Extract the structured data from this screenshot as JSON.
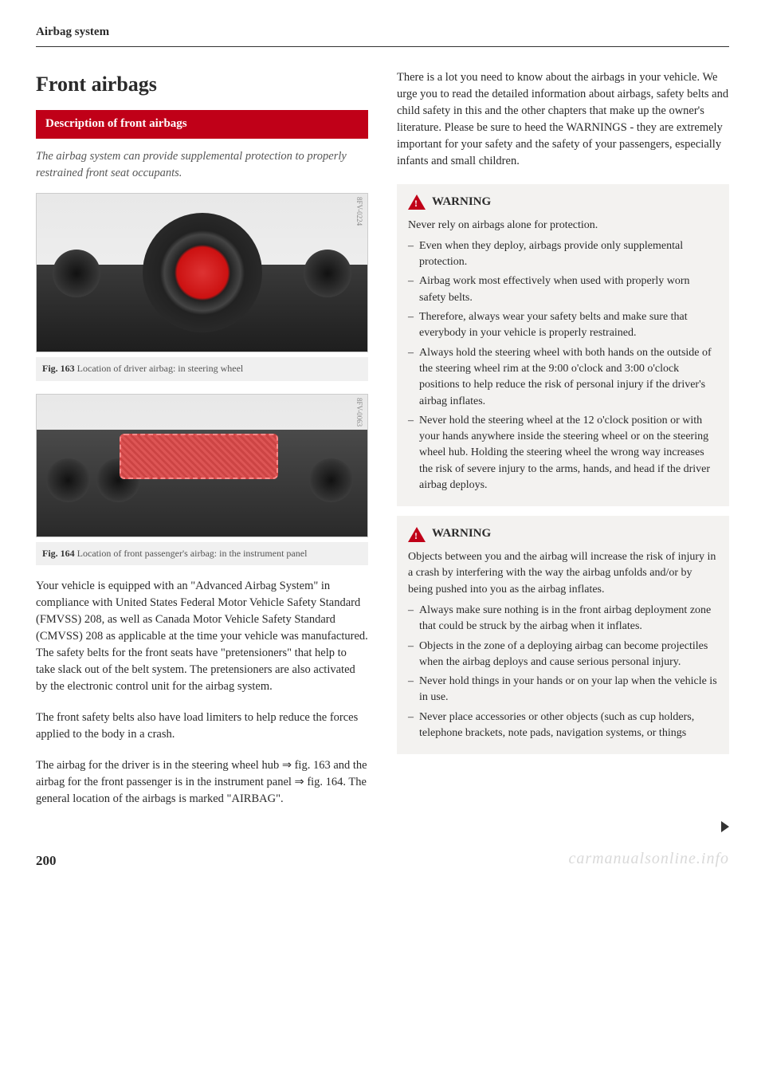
{
  "running_header": "Airbag system",
  "section_title": "Front airbags",
  "subsection_bar": "Description of front airbags",
  "lead": "The airbag system can provide supplemental protection to properly restrained front seat occupants.",
  "fig1": {
    "code": "8FV-0224",
    "caption_bold": "Fig. 163",
    "caption_text": "Location of driver airbag: in steering wheel"
  },
  "fig2": {
    "code": "8FV-0063",
    "caption_bold": "Fig. 164",
    "caption_text": "Location of front passenger's airbag: in the instrument panel"
  },
  "para1": "Your vehicle is equipped with an \"Advanced Airbag System\" in compliance with United States Federal Motor Vehicle Safety Standard (FMVSS) 208, as well as Canada Motor Vehicle Safety Standard (CMVSS) 208 as applicable at the time your vehicle was manufactured. The safety belts for the front seats have \"pretensioners\" that help to take slack out of the belt system. The pretensioners are also activated by the electronic control unit for the airbag system.",
  "para2": "The front safety belts also have load limiters to help reduce the forces applied to the body in a crash.",
  "para3": "The airbag for the driver is in the steering wheel hub ⇒ fig. 163 and the airbag for the front passenger is in the instrument panel ⇒ fig. 164. The general location of the airbags is marked \"AIRBAG\".",
  "para4": "There is a lot you need to know about the airbags in your vehicle. We urge you to read the detailed information about airbags, safety belts and child safety in this and the other chapters that make up the owner's literature. Please be sure to heed the WARNINGS - they are extremely important for your safety and the safety of your passengers, especially infants and small children.",
  "warning_label": "WARNING",
  "warn1": {
    "lead": "Never rely on airbags alone for protection.",
    "items": [
      "Even when they deploy, airbags provide only supplemental protection.",
      "Airbag work most effectively when used with properly worn safety belts.",
      "Therefore, always wear your safety belts and make sure that everybody in your vehicle is properly restrained.",
      "Always hold the steering wheel with both hands on the outside of the steering wheel rim at the 9:00 o'clock and 3:00 o'clock positions to help reduce the risk of personal injury if the driver's airbag inflates.",
      "Never hold the steering wheel at the 12 o'clock position or with your hands anywhere inside the steering wheel or on the steering wheel hub. Holding the steering wheel the wrong way increases the risk of severe injury to the arms, hands, and head if the driver airbag deploys."
    ]
  },
  "warn2": {
    "lead": "Objects between you and the airbag will increase the risk of injury in a crash by interfering with the way the airbag unfolds and/or by being pushed into you as the airbag inflates.",
    "items": [
      "Always make sure nothing is in the front airbag deployment zone that could be struck by the airbag when it inflates.",
      "Objects in the zone of a deploying airbag can become projectiles when the airbag deploys and cause serious personal injury.",
      "Never hold things in your hands or on your lap when the vehicle is in use.",
      "Never place accessories or other objects (such as cup holders, telephone brackets, note pads, navigation systems, or things"
    ]
  },
  "page_number": "200",
  "watermark": "carmanualsonline.info"
}
